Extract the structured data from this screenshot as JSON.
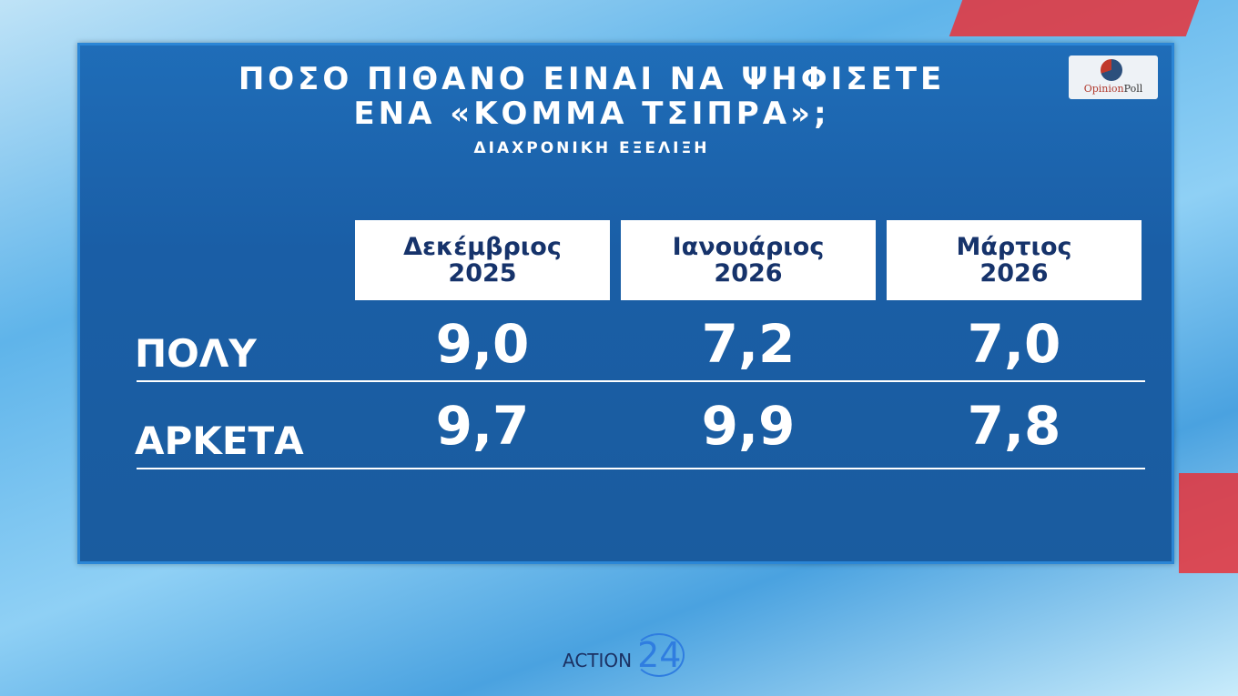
{
  "title_line1": "ΠΟΣΟ ΠΙΘΑΝΟ ΕΙΝΑΙ ΝΑ ΨΗΦΙΣΕΤΕ",
  "title_line2": "ΕΝΑ «ΚΟΜΜΑ ΤΣΙΠΡΑ»;",
  "subtitle": "ΔΙΑΧΡΟΝΙΚΗ ΕΞΕΛΙΞΗ",
  "pollster_logo": {
    "text1": "Opinion",
    "text2": "Poll"
  },
  "channel_logo": {
    "text": "ACTION",
    "number": "24"
  },
  "chart_data": {
    "type": "table",
    "columns": [
      {
        "month": "Δεκέμβριος",
        "year": "2025"
      },
      {
        "month": "Ιανουάριος",
        "year": "2026"
      },
      {
        "month": "Μάρτιος",
        "year": "2026"
      }
    ],
    "rows": [
      {
        "label": "ΠΟΛΥ",
        "values": [
          "9,0",
          "7,2",
          "7,0"
        ]
      },
      {
        "label": "ΑΡΚΕΤΑ",
        "values": [
          "9,7",
          "9,9",
          "7,8"
        ]
      }
    ]
  }
}
